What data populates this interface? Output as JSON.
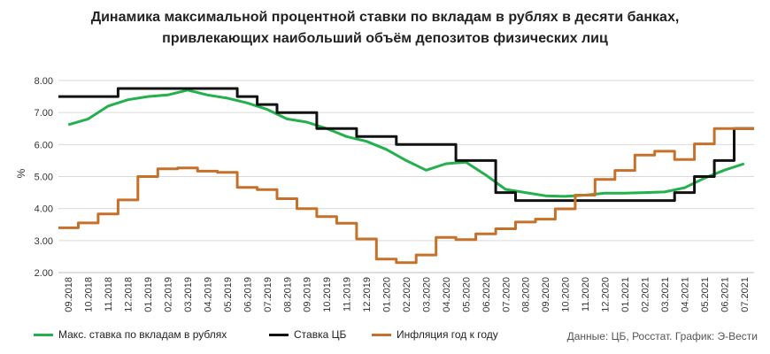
{
  "chart_data": {
    "type": "line",
    "title": "Динамика максимальной процентной ставки по вкладам в рублях в десяти банках,",
    "subtitle": "привлекающих наибольший объём депозитов физических лиц",
    "ylabel": "%",
    "xlabel": "",
    "ylim": [
      2.0,
      8.0
    ],
    "yticks": [
      "2.00",
      "3.00",
      "4.00",
      "5.00",
      "6.00",
      "7.00",
      "8.00"
    ],
    "grid": true,
    "legend_position": "bottom",
    "source": "Данные: ЦБ, Росстат. График: Э-Вести",
    "x": [
      "09.2018",
      "10.2018",
      "11.2018",
      "12.2018",
      "01.2019",
      "02.2019",
      "03.2019",
      "04.2019",
      "05.2019",
      "06.2019",
      "07.2019",
      "08.2019",
      "09.2019",
      "10.2019",
      "11.2019",
      "12.2019",
      "01.2020",
      "02.2020",
      "03.2020",
      "04.2020",
      "05.2020",
      "06.2020",
      "07.2020",
      "08.2020",
      "09.2020",
      "10.2020",
      "11.2020",
      "12.2020",
      "01.2021",
      "02.2021",
      "03.2021",
      "04.2021",
      "05.2021",
      "06.2021",
      "07.2021"
    ],
    "series": [
      {
        "name": "Макс. ставка по вкладам в рублях",
        "color": "#22b14c",
        "step": false,
        "values": [
          6.62,
          6.8,
          7.2,
          7.4,
          7.5,
          7.55,
          7.7,
          7.55,
          7.45,
          7.3,
          7.1,
          6.8,
          6.7,
          6.5,
          6.25,
          6.1,
          5.85,
          5.5,
          5.2,
          5.4,
          5.45,
          5.05,
          4.6,
          4.5,
          4.4,
          4.38,
          4.42,
          4.48,
          4.48,
          4.5,
          4.52,
          4.65,
          4.95,
          5.2,
          5.4
        ]
      },
      {
        "name": "Ставка ЦБ",
        "color": "#111111",
        "step": true,
        "values": [
          7.5,
          7.5,
          7.5,
          7.75,
          7.75,
          7.75,
          7.75,
          7.75,
          7.75,
          7.5,
          7.25,
          7.0,
          7.0,
          6.5,
          6.5,
          6.25,
          6.25,
          6.0,
          6.0,
          6.0,
          5.5,
          5.5,
          4.5,
          4.25,
          4.25,
          4.25,
          4.25,
          4.25,
          4.25,
          4.25,
          4.25,
          4.5,
          5.0,
          5.5,
          6.5
        ]
      },
      {
        "name": "Инфляция год к году",
        "color": "#c5712a",
        "step": true,
        "values": [
          3.4,
          3.55,
          3.83,
          4.27,
          5.0,
          5.24,
          5.27,
          5.17,
          5.13,
          4.66,
          4.59,
          4.31,
          4.0,
          3.75,
          3.54,
          3.05,
          2.42,
          2.31,
          2.55,
          3.1,
          3.03,
          3.21,
          3.37,
          3.58,
          3.67,
          3.99,
          4.42,
          4.91,
          5.19,
          5.67,
          5.79,
          5.53,
          6.02,
          6.5,
          6.5
        ]
      }
    ]
  }
}
